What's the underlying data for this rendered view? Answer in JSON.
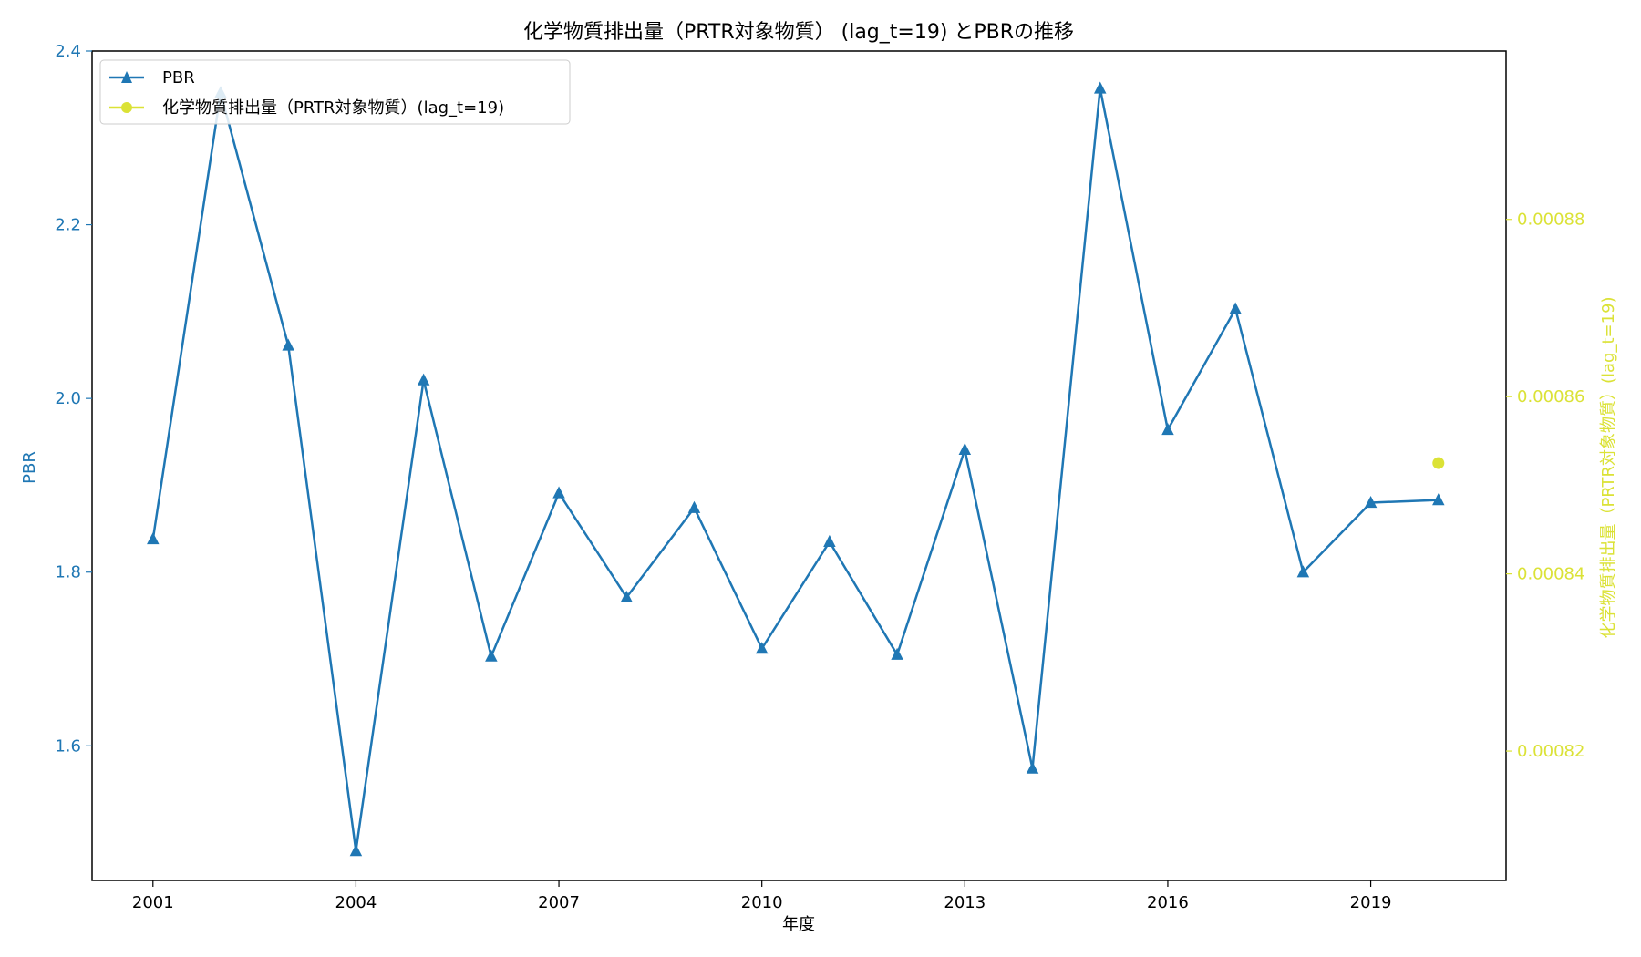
{
  "chart_data": {
    "type": "line",
    "title": "化学物質排出量（PRTR対象物質） (lag_t=19) とPBRの推移",
    "xlabel": "年度",
    "ylabel_left": "PBR",
    "ylabel_right": "化学物質排出量（PRTR対象物質）(lag_t=19)",
    "x_ticks": [
      "2001",
      "2004",
      "2007",
      "2010",
      "2013",
      "2016",
      "2019"
    ],
    "xlim": [
      2000.1,
      2021.0
    ],
    "ylim_left": [
      1.445,
      2.4
    ],
    "ylim_right": [
      0.0008054,
      0.000899
    ],
    "y_ticks_left": [
      "1.6",
      "1.8",
      "2.0",
      "2.2",
      "2.4"
    ],
    "y_ticks_right": [
      "0.00082",
      "0.00084",
      "0.00086",
      "0.00088"
    ],
    "legend_position": "top-left",
    "colors": {
      "pbr": "#1f77b4",
      "chem": "#dbe236",
      "axis": "#000000"
    },
    "series": [
      {
        "name": "PBR",
        "axis": "left",
        "marker": "triangle",
        "x": [
          2001,
          2002,
          2003,
          2004,
          2005,
          2006,
          2007,
          2008,
          2009,
          2010,
          2011,
          2012,
          2013,
          2014,
          2015,
          2016,
          2017,
          2018,
          2019,
          2020
        ],
        "values": [
          1.838,
          2.352,
          2.061,
          1.479,
          2.021,
          1.703,
          1.891,
          1.771,
          1.874,
          1.712,
          1.835,
          1.705,
          1.941,
          1.574,
          2.357,
          1.964,
          2.103,
          1.8,
          1.88,
          1.883
        ]
      },
      {
        "name": "化学物質排出量（PRTR対象物質）(lag_t=19)",
        "axis": "right",
        "marker": "circle",
        "x": [
          2020
        ],
        "values": [
          0.0008525
        ]
      }
    ]
  }
}
